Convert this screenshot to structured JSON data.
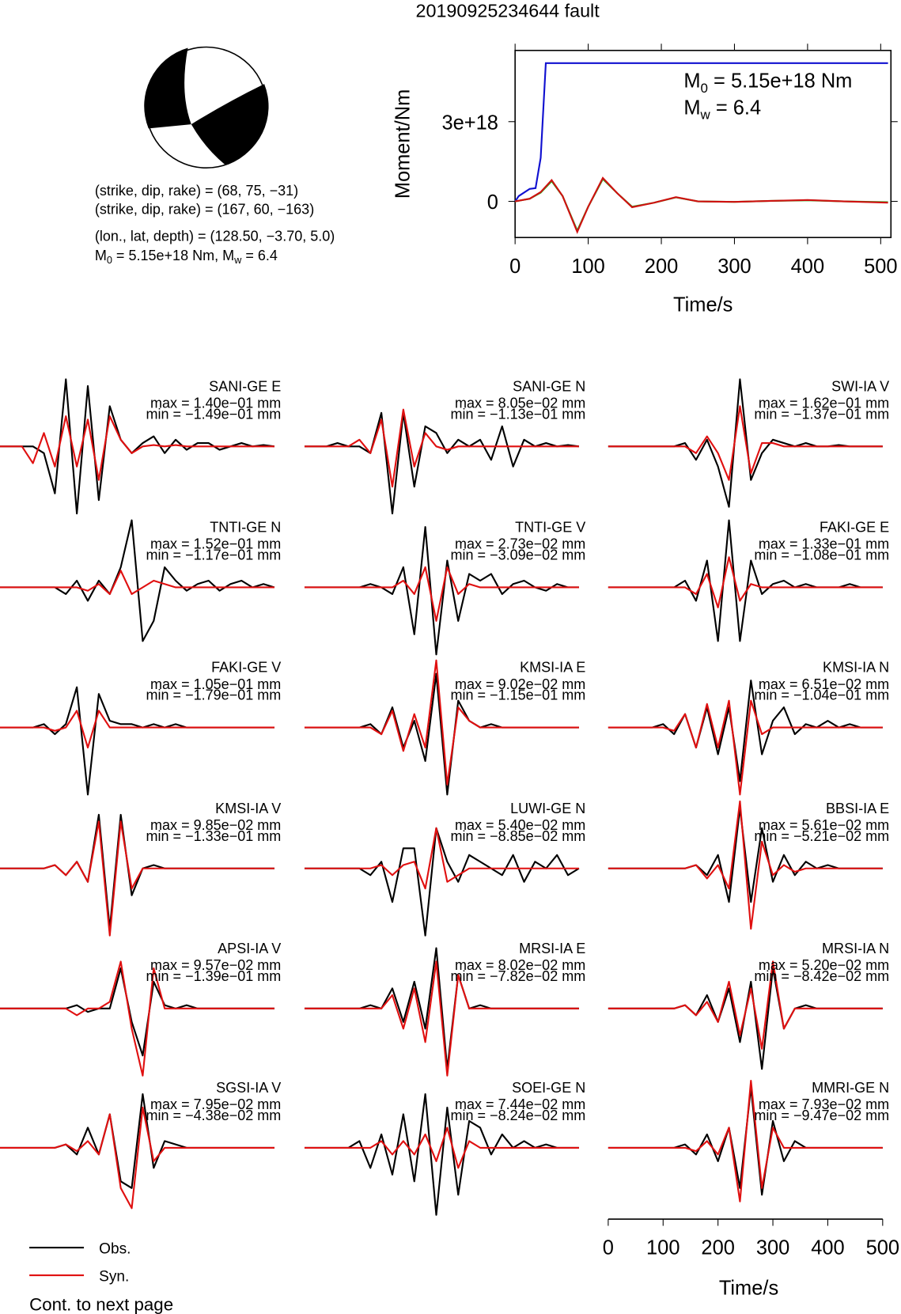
{
  "title": "20190925234644 fault",
  "mechanism": {
    "lines": [
      "(strike, dip, rake) = (68, 75, −31)",
      "(strike, dip, rake) = (167, 60, −163)",
      "(lon., lat, depth) = (128.50, −3.70, 5.0)"
    ],
    "moment": [
      "M",
      "0",
      " = 5.15e+18 Nm, M",
      "w",
      " = 6.4"
    ]
  },
  "chart_data": {
    "type": "line",
    "xlabel": "Time/s",
    "ylabel": "Moment/Nm",
    "xlim": [
      0,
      514
    ],
    "xticks": [
      0,
      100,
      200,
      300,
      400,
      500
    ],
    "ylim": [
      -1.36e+18,
      5.68e+18
    ],
    "yticks": [
      0,
      {
        "value": 3e+18,
        "label": "3e+18"
      }
    ],
    "annotations": [
      [
        "M",
        "0",
        " = 5.15e+18 Nm"
      ],
      [
        "M",
        "w",
        " = 6.4"
      ]
    ],
    "series": [
      {
        "color": "#1010d0",
        "x": [
          0,
          5,
          20,
          28,
          35,
          42,
          510
        ],
        "values": [
          0,
          2e+17,
          4.7e+17,
          5e+17,
          1.64e+18,
          5.2e+18,
          5.2e+18
        ]
      },
      {
        "color": "#20b020",
        "x": [
          0,
          20,
          35,
          50,
          65,
          85,
          100,
          120,
          140,
          160,
          190,
          220,
          250,
          300,
          350,
          400,
          450,
          510
        ],
        "values": [
          0,
          1e+17,
          3.3e+17,
          7.6e+17,
          2e+17,
          -1.1e+18,
          -2e+17,
          8.4e+17,
          3e+17,
          -2e+17,
          -5e+16,
          1.5e+17,
          0,
          -2e+16,
          2e+16,
          4e+16,
          0,
          -3e+16
        ]
      },
      {
        "color": "#d01010",
        "x": [
          0,
          20,
          35,
          50,
          65,
          85,
          100,
          120,
          140,
          160,
          190,
          220,
          250,
          300,
          350,
          400,
          450,
          510
        ],
        "values": [
          0,
          1e+17,
          3.5e+17,
          8e+17,
          2e+17,
          -1.15e+18,
          -2e+17,
          8.8e+17,
          3e+17,
          -2.2e+17,
          -5e+16,
          1.6e+17,
          0,
          -2e+16,
          2e+16,
          5e+16,
          0,
          -5e+16
        ]
      }
    ]
  },
  "waveforms": {
    "xlabel": "Time/s",
    "xlim": [
      0,
      512
    ],
    "xticks": [
      0,
      100,
      200,
      300,
      400,
      500
    ],
    "legend": [
      {
        "name": "Obs.",
        "color": "#000000"
      },
      {
        "name": "Syn.",
        "color": "#e01010"
      }
    ],
    "times": [
      0,
      20,
      40,
      60,
      80,
      100,
      120,
      140,
      160,
      180,
      200,
      220,
      240,
      260,
      280,
      300,
      320,
      340,
      360,
      380,
      400,
      420,
      440,
      460,
      480,
      500
    ],
    "panels": [
      {
        "name": "SANI-GE E",
        "max": "max = 1.40e−01 mm",
        "min": "min = −1.49e−01 mm",
        "obs": [
          0,
          0,
          0,
          0,
          -0.1,
          -0.7,
          1,
          -1,
          0.9,
          -0.8,
          0.6,
          0.1,
          -0.1,
          0.05,
          0.15,
          -0.1,
          0.1,
          -0.05,
          0.05,
          0.05,
          -0.05,
          0,
          0.05,
          0,
          0.02,
          0
        ],
        "syn": [
          0,
          0,
          0,
          -0.25,
          0.2,
          -0.3,
          0.45,
          -0.3,
          0.4,
          -0.5,
          0.45,
          0.1,
          -0.1,
          0,
          0.02,
          0,
          0.02,
          0,
          0,
          0,
          0,
          0,
          0,
          0,
          0,
          0
        ]
      },
      {
        "name": "SANI-GE N",
        "max": "max = 8.05e−02 mm",
        "min": "min = −1.13e−01 mm",
        "obs": [
          0,
          0,
          0,
          0.05,
          0,
          0,
          -0.1,
          0.5,
          -1,
          0.5,
          -0.6,
          0.3,
          0.2,
          -0.1,
          0.1,
          0,
          0.1,
          -0.2,
          0.3,
          -0.3,
          0.1,
          0,
          0.05,
          0,
          0.02,
          0
        ],
        "syn": [
          0,
          0,
          0,
          0,
          0,
          0.1,
          -0.1,
          0.4,
          -0.6,
          0.55,
          -0.3,
          0.2,
          0,
          -0.05,
          0,
          0,
          0,
          0,
          0,
          0,
          0,
          0,
          0,
          0,
          0,
          0
        ]
      },
      {
        "name": "SWI-IA V",
        "max": "max = 1.62e−01 mm",
        "min": "min = −1.37e−01 mm",
        "obs": [
          0,
          0,
          0,
          0,
          0,
          0,
          0,
          0.05,
          -0.2,
          0.1,
          -0.3,
          -0.9,
          1,
          -0.5,
          -0.1,
          0.1,
          0.05,
          0,
          0.05,
          0,
          0,
          0.02,
          0,
          0,
          0,
          0
        ],
        "syn": [
          0,
          0,
          0,
          0,
          0,
          0,
          0,
          0,
          -0.1,
          0.15,
          -0.1,
          -0.5,
          0.6,
          -0.4,
          0.05,
          0.05,
          0,
          0,
          0,
          0,
          0,
          0,
          0,
          0,
          0,
          0
        ]
      },
      {
        "name": "TNTI-GE N",
        "max": "max = 1.52e−01 mm",
        "min": "min = −1.17e−01 mm",
        "obs": [
          0,
          0,
          0,
          0,
          0,
          0,
          -0.1,
          0.1,
          -0.2,
          0.1,
          -0.1,
          0.3,
          1,
          -0.8,
          -0.5,
          0.3,
          0.1,
          -0.05,
          0.05,
          0.1,
          -0.05,
          0.05,
          0.1,
          0,
          0.05,
          0
        ],
        "syn": [
          0,
          0,
          0,
          0,
          0,
          0,
          0,
          0,
          -0.05,
          0.05,
          -0.1,
          0.25,
          -0.1,
          0,
          0.1,
          0.05,
          0,
          0,
          0,
          0,
          0,
          0,
          0,
          0,
          0,
          0
        ]
      },
      {
        "name": "TNTI-GE V",
        "max": "max = 2.73e−02 mm",
        "min": "min = −3.09e−02 mm",
        "obs": [
          0,
          0,
          0,
          0,
          0,
          0,
          0.05,
          0,
          -0.1,
          0.3,
          -0.7,
          0.9,
          -1,
          0.4,
          -0.5,
          0.2,
          0.1,
          0.2,
          -0.1,
          0.05,
          0.1,
          0,
          -0.05,
          0.05,
          0,
          0
        ],
        "syn": [
          0,
          0,
          0,
          0,
          0,
          0,
          0,
          0,
          0,
          0.1,
          -0.1,
          0.3,
          -0.5,
          0.3,
          -0.1,
          0.05,
          0,
          0,
          0,
          0,
          0,
          0,
          0,
          0,
          0,
          0
        ]
      },
      {
        "name": "FAKI-GE E",
        "max": "max = 1.33e−01 mm",
        "min": "min = −1.08e−01 mm",
        "obs": [
          0,
          0,
          0,
          0,
          0,
          0,
          0,
          0.1,
          -0.2,
          0.4,
          -0.8,
          1,
          -0.8,
          0.4,
          -0.1,
          0.05,
          0.1,
          0,
          0.05,
          0,
          0,
          0,
          0.05,
          0,
          0,
          0
        ],
        "syn": [
          0,
          0,
          0,
          0,
          0,
          0,
          0,
          0,
          -0.1,
          0.2,
          -0.3,
          0.45,
          -0.2,
          0.05,
          0,
          0,
          0,
          0,
          0,
          0,
          0,
          0,
          0,
          0,
          0,
          0
        ]
      },
      {
        "name": "FAKI-GE V",
        "max": "max = 1.05e−01 mm",
        "min": "min = −1.79e−01 mm",
        "obs": [
          0,
          0,
          0,
          0,
          0.05,
          -0.1,
          0.05,
          0.6,
          -1,
          0.5,
          0.1,
          0.05,
          0.05,
          0,
          0.05,
          0,
          0.05,
          0,
          0,
          0,
          0,
          0,
          0,
          0,
          0,
          0
        ],
        "syn": [
          0,
          0,
          0,
          0,
          0,
          -0.05,
          0,
          0.25,
          -0.3,
          0.25,
          0,
          0,
          0,
          0,
          0,
          0,
          0,
          0,
          0,
          0,
          0,
          0,
          0,
          0,
          0,
          0
        ]
      },
      {
        "name": "KMSI-IA E",
        "max": "max = 9.02e−02 mm",
        "min": "min = −1.15e−01 mm",
        "obs": [
          0,
          0,
          0,
          0,
          0,
          0,
          0.05,
          -0.1,
          0.3,
          -0.3,
          0.1,
          -0.5,
          0.8,
          -1,
          0.4,
          0.1,
          0,
          0.05,
          0,
          0,
          0,
          0,
          0,
          0,
          0,
          0
        ],
        "syn": [
          0,
          0,
          0,
          0,
          0,
          0,
          0,
          -0.1,
          0.25,
          -0.35,
          0.2,
          -0.3,
          1,
          -0.85,
          0.3,
          0.1,
          0,
          0,
          0,
          0,
          0,
          0,
          0,
          0,
          0,
          0
        ]
      },
      {
        "name": "KMSI-IA N",
        "max": "max = 6.51e−02 mm",
        "min": "min = −1.04e−01 mm",
        "obs": [
          0,
          0,
          0,
          0,
          0,
          0.05,
          -0.1,
          0.2,
          -0.3,
          0.3,
          -0.4,
          0.3,
          -0.8,
          0.7,
          -0.4,
          0.1,
          0.3,
          -0.1,
          0.05,
          0,
          0.1,
          0,
          0.05,
          0,
          0,
          0
        ],
        "syn": [
          0,
          0,
          0,
          0,
          0,
          0,
          -0.05,
          0.2,
          -0.3,
          0.35,
          -0.3,
          0.4,
          -1,
          0.4,
          -0.1,
          0,
          0,
          0,
          0,
          0,
          0,
          0,
          0,
          0,
          0,
          0
        ]
      },
      {
        "name": "KMSI-IA V",
        "max": "max = 9.85e−02 mm",
        "min": "min = −1.33e−01 mm",
        "obs": [
          0,
          0,
          0,
          0,
          0,
          0.05,
          -0.1,
          0.1,
          -0.2,
          0.8,
          -0.9,
          0.8,
          -0.4,
          0,
          0.05,
          0,
          0,
          0,
          0,
          0,
          0,
          0,
          0,
          0,
          0,
          0
        ],
        "syn": [
          0,
          0,
          0,
          0,
          0,
          0.05,
          -0.1,
          0.1,
          -0.2,
          0.7,
          -1,
          0.7,
          -0.3,
          0,
          0,
          0,
          0,
          0,
          0,
          0,
          0,
          0,
          0,
          0,
          0,
          0
        ]
      },
      {
        "name": "LUWI-GE N",
        "max": "max = 5.40e−02 mm",
        "min": "min = −8.85e−02 mm",
        "obs": [
          0,
          0,
          0,
          0,
          0,
          0,
          -0.1,
          0.1,
          -0.5,
          0.3,
          0.3,
          -1,
          0.6,
          0.1,
          -0.2,
          0.2,
          0.1,
          0,
          -0.1,
          0.2,
          -0.2,
          0.1,
          0,
          0.2,
          -0.1,
          0
        ],
        "syn": [
          0,
          0,
          0,
          0,
          0,
          0,
          0,
          0.05,
          -0.1,
          0.05,
          0.1,
          -0.3,
          0.6,
          -0.2,
          -0.1,
          0,
          0,
          0,
          0,
          0,
          0,
          0,
          0,
          0,
          0,
          0
        ]
      },
      {
        "name": "BBSI-IA E",
        "max": "max = 5.61e−02 mm",
        "min": "min = −5.21e−02 mm",
        "obs": [
          0,
          0,
          0,
          0,
          0,
          0,
          0,
          0,
          0.05,
          -0.1,
          0.2,
          -0.5,
          0.9,
          -0.5,
          0.6,
          -0.2,
          0.2,
          -0.1,
          0.1,
          0,
          0.05,
          0,
          0,
          0,
          0,
          0
        ],
        "syn": [
          0,
          0,
          0,
          0,
          0,
          0,
          0,
          0,
          0.05,
          -0.15,
          0.05,
          -0.3,
          1,
          -0.9,
          0.4,
          -0.1,
          0.05,
          -0.05,
          0,
          0,
          0,
          0,
          0,
          0,
          0,
          0
        ]
      },
      {
        "name": "APSI-IA V",
        "max": "max = 9.57e−02 mm",
        "min": "min = −1.39e−01 mm",
        "obs": [
          0,
          0,
          0,
          0,
          0,
          0,
          0,
          0.05,
          -0.05,
          0,
          0,
          0.6,
          -0.2,
          -0.7,
          0.4,
          0.05,
          0,
          0.05,
          0,
          0,
          0,
          0,
          0,
          0,
          0,
          0
        ],
        "syn": [
          0,
          0,
          0,
          0,
          0,
          0,
          0,
          -0.1,
          0,
          0,
          0.1,
          0.7,
          -0.3,
          -1,
          0.6,
          0,
          0,
          0,
          0,
          0,
          0,
          0,
          0,
          0,
          0,
          0
        ]
      },
      {
        "name": "MRSI-IA E",
        "max": "max = 8.02e−02 mm",
        "min": "min = −7.82e−02 mm",
        "obs": [
          0,
          0,
          0,
          0,
          0,
          0,
          0.05,
          0,
          0.3,
          -0.2,
          0.4,
          -0.3,
          0.9,
          -0.9,
          0.5,
          0,
          0.05,
          0,
          0,
          0,
          0,
          0,
          0,
          0,
          0,
          0
        ],
        "syn": [
          0,
          0,
          0,
          0,
          0,
          0,
          0,
          0,
          0.2,
          -0.3,
          0.3,
          -0.5,
          0.7,
          -1,
          0.5,
          0,
          0,
          0,
          0,
          0,
          0,
          0,
          0,
          0,
          0,
          0
        ]
      },
      {
        "name": "MRSI-IA N",
        "max": "max = 5.20e−02 mm",
        "min": "min = −8.42e−02 mm",
        "obs": [
          0,
          0,
          0,
          0,
          0,
          0,
          0,
          0.05,
          -0.1,
          0.2,
          -0.2,
          0.3,
          -0.5,
          0.4,
          -0.9,
          0.6,
          -0.3,
          0,
          0.05,
          0,
          0,
          0,
          0,
          0,
          0,
          0
        ],
        "syn": [
          0,
          0,
          0,
          0,
          0,
          0,
          0,
          0.05,
          -0.1,
          0.1,
          -0.2,
          0.4,
          -0.4,
          0.3,
          -0.6,
          0.7,
          -0.3,
          0,
          0,
          0,
          0,
          0,
          0,
          0,
          0,
          0
        ]
      },
      {
        "name": "SGSI-IA V",
        "max": "max = 7.95e−02 mm",
        "min": "min = −4.38e−02 mm",
        "obs": [
          0,
          0,
          0,
          0,
          0,
          0,
          0.05,
          -0.1,
          0.3,
          -0.1,
          0.5,
          -0.5,
          -0.6,
          0.8,
          -0.3,
          0.1,
          0.05,
          0,
          0,
          0,
          0,
          0,
          0,
          0,
          0,
          0
        ],
        "syn": [
          0,
          0,
          0,
          0,
          0,
          0,
          0.05,
          -0.05,
          0.1,
          -0.1,
          0.5,
          -0.6,
          -0.9,
          0.6,
          -0.2,
          0,
          0,
          0,
          0,
          0,
          0,
          0,
          0,
          0,
          0,
          0
        ]
      },
      {
        "name": "SOEI-GE N",
        "max": "max = 7.44e−02 mm",
        "min": "min = −8.24e−02 mm",
        "obs": [
          0,
          0,
          0,
          0,
          0,
          0.1,
          -0.3,
          0.2,
          -0.4,
          0.5,
          -0.5,
          0.8,
          -1,
          0.6,
          -0.7,
          0.4,
          0.3,
          -0.1,
          0.2,
          0,
          0.1,
          0,
          0.05,
          0,
          0,
          0
        ],
        "syn": [
          0,
          0,
          0,
          0,
          0,
          0,
          0,
          0.1,
          -0.1,
          0.1,
          -0.1,
          0.2,
          -0.2,
          0.3,
          -0.3,
          0.1,
          0,
          0,
          0,
          0,
          0,
          0,
          0,
          0,
          0,
          0
        ]
      },
      {
        "name": "MMRI-GE N",
        "max": "max = 7.93e−02 mm",
        "min": "min = −9.47e−02 mm",
        "obs": [
          0,
          0,
          0,
          0,
          0,
          0,
          0,
          0.05,
          -0.1,
          0.2,
          -0.2,
          0.3,
          -0.6,
          0.9,
          -0.7,
          0.4,
          -0.2,
          0.1,
          0,
          0,
          0,
          0,
          0,
          0,
          0,
          0
        ],
        "syn": [
          0,
          0,
          0,
          0,
          0,
          0,
          0,
          0,
          -0.05,
          0.1,
          -0.1,
          0.3,
          -0.8,
          1,
          -0.6,
          0.3,
          0,
          0,
          0,
          0,
          0,
          0,
          0,
          0,
          0,
          0
        ]
      }
    ]
  },
  "footer": "Cont. to next page"
}
